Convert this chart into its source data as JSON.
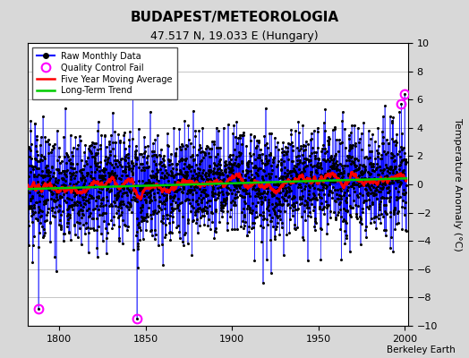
{
  "title": "BUDAPEST/METEOROLOGIA",
  "subtitle": "47.517 N, 19.033 E (Hungary)",
  "ylabel": "Temperature Anomaly (°C)",
  "xlim": [
    1782,
    2002
  ],
  "ylim": [
    -10,
    10
  ],
  "yticks": [
    -10,
    -8,
    -6,
    -4,
    -2,
    0,
    2,
    4,
    6,
    8,
    10
  ],
  "xticks": [
    1800,
    1850,
    1900,
    1950,
    2000
  ],
  "year_start": 1782,
  "year_end": 2001,
  "seed": 123,
  "bg_color": "#d8d8d8",
  "plot_bg_color": "#ffffff",
  "raw_line_color": "#0000ff",
  "raw_dot_color": "#000000",
  "ma_color": "#ff0000",
  "trend_color": "#00cc00",
  "qc_color": "#ff00ff",
  "watermark": "Berkeley Earth",
  "n_months": 2640,
  "qc_fail_years": [
    1788,
    1845,
    1998,
    2000
  ],
  "qc_fail_values": [
    -8.8,
    -9.5,
    5.7,
    6.4
  ]
}
